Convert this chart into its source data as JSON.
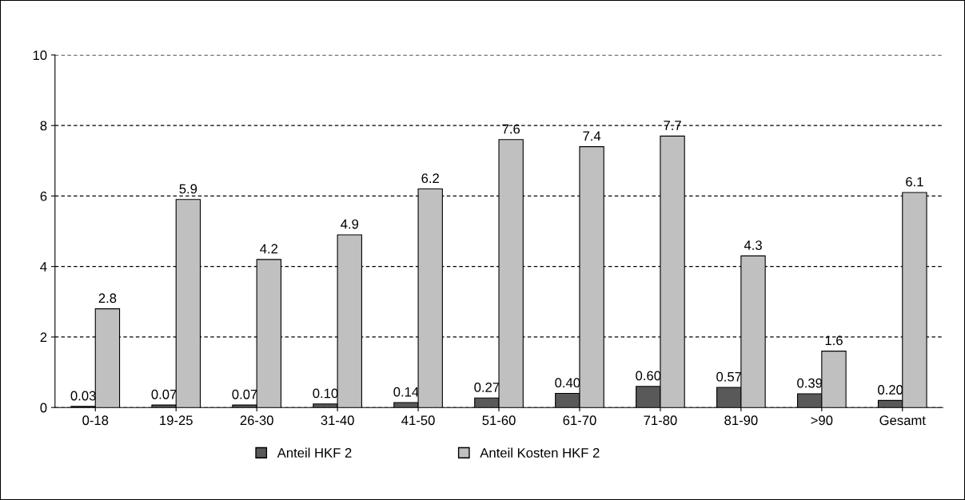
{
  "chart_data": {
    "type": "bar",
    "categories": [
      "0-18",
      "19-25",
      "26-30",
      "31-40",
      "41-50",
      "51-60",
      "61-70",
      "71-80",
      "81-90",
      ">90",
      "Gesamt"
    ],
    "series": [
      {
        "name": "Anteil HKF 2",
        "color": "#595959",
        "values": [
          0.03,
          0.07,
          0.07,
          0.1,
          0.14,
          0.27,
          0.4,
          0.6,
          0.57,
          0.39,
          0.2
        ],
        "value_labels": [
          "0.03",
          "0.07",
          "0.07",
          "0.10",
          "0.14",
          "0.27",
          "0.40",
          "0.60",
          "0.57",
          "0.39",
          "0.20"
        ]
      },
      {
        "name": "Anteil Kosten HKF 2",
        "color": "#c0c0c0",
        "values": [
          2.8,
          5.9,
          4.2,
          4.9,
          6.2,
          7.6,
          7.4,
          7.7,
          4.3,
          1.6,
          6.1
        ],
        "value_labels": [
          "2.8",
          "5.9",
          "4.2",
          "4.9",
          "6.2",
          "7.6",
          "7.4",
          "7.7",
          "4.3",
          "1.6",
          "6.1"
        ]
      }
    ],
    "ylim": [
      0,
      10
    ],
    "yticks": [
      0,
      2,
      4,
      6,
      8,
      10
    ],
    "grid": "y",
    "legend": "bottom"
  }
}
